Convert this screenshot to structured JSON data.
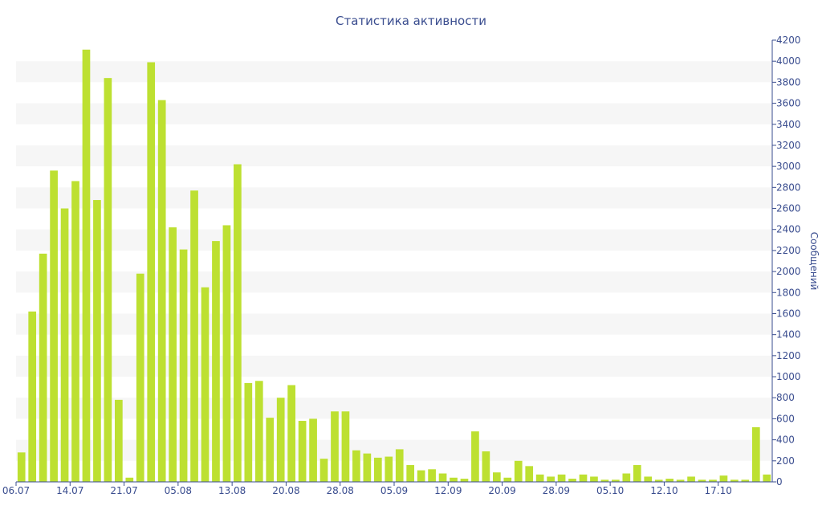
{
  "chart_data": {
    "type": "bar",
    "title": "Статистика активности",
    "xlabel": "",
    "ylabel": "Сообщений",
    "ylim": [
      0,
      4200
    ],
    "y_ticks": [
      0,
      200,
      400,
      600,
      800,
      1000,
      1200,
      1400,
      1600,
      1800,
      2000,
      2200,
      2400,
      2600,
      2800,
      3000,
      3200,
      3400,
      3600,
      3800,
      4000,
      4200
    ],
    "x_tick_labels": [
      {
        "index": 0,
        "label": "06.07"
      },
      {
        "index": 5,
        "label": "14.07"
      },
      {
        "index": 10,
        "label": "21.07"
      },
      {
        "index": 15,
        "label": "05.08"
      },
      {
        "index": 20,
        "label": "13.08"
      },
      {
        "index": 25,
        "label": "20.08"
      },
      {
        "index": 30,
        "label": "28.08"
      },
      {
        "index": 35,
        "label": "05.09"
      },
      {
        "index": 40,
        "label": "12.09"
      },
      {
        "index": 45,
        "label": "20.09"
      },
      {
        "index": 50,
        "label": "28.09"
      },
      {
        "index": 55,
        "label": "05.10"
      },
      {
        "index": 60,
        "label": "12.10"
      },
      {
        "index": 65,
        "label": "17.10"
      }
    ],
    "values": [
      280,
      1620,
      2170,
      2960,
      2600,
      2860,
      4110,
      2680,
      3840,
      780,
      40,
      1980,
      3990,
      3630,
      2420,
      2210,
      2770,
      1850,
      2290,
      2440,
      3020,
      940,
      960,
      610,
      800,
      920,
      580,
      600,
      220,
      670,
      670,
      300,
      270,
      230,
      240,
      310,
      160,
      110,
      120,
      80,
      40,
      30,
      480,
      290,
      90,
      40,
      200,
      150,
      70,
      50,
      70,
      30,
      70,
      50,
      20,
      20,
      80,
      160,
      50,
      20,
      30,
      20,
      50,
      20,
      20,
      60,
      20,
      20,
      520,
      70
    ],
    "grid": true,
    "legend": "none",
    "colors": {
      "bar": "#bde031",
      "band": "#f6f6f6",
      "text": "#3a4d8f",
      "axis": "#3a4d8f"
    }
  }
}
